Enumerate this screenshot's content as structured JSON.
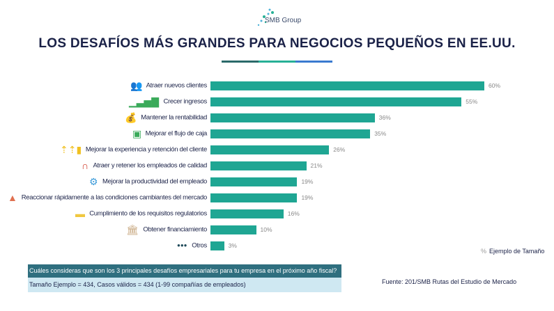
{
  "logo": {
    "text": "SMB Group"
  },
  "chart_data": {
    "type": "bar",
    "orientation": "horizontal",
    "title": "LOS DESAFÍOS MÁS GRANDES PARA NEGOCIOS PEQUEÑOS EN EE.UU.",
    "categories": [
      "Atraer nuevos clientes",
      "Crecer ingresos",
      "Mantener la rentabilidad",
      "Mejorar el flujo de caja",
      "Mejorar la experiencia y retención del cliente",
      "Atraer y retener los empleados de calidad",
      "Mejorar la productividad del empleado",
      "Reaccionar rápidamente a las condiciones cambiantes del mercado",
      "Cumplimiento de los requisitos regulatorios",
      "Obtener financiamiento",
      "Otros"
    ],
    "values": [
      60,
      55,
      36,
      35,
      26,
      21,
      19,
      19,
      16,
      10,
      3
    ],
    "value_labels": [
      "60%",
      "55%",
      "36%",
      "35%",
      "26%",
      "21%",
      "19%",
      "19%",
      "16%",
      "10%",
      "3%"
    ],
    "icons": [
      "people-icon",
      "growth-chart-icon",
      "money-bag-icon",
      "cash-icon",
      "customers-icon",
      "magnet-icon",
      "gears-icon",
      "chat-person-icon",
      "folder-icon",
      "bank-icon",
      "dots-icon"
    ],
    "xlim": [
      0,
      60
    ],
    "bar_color": "#1fa693",
    "legend": {
      "symbol": "%",
      "label": "Ejemplo de Tamaño",
      "position": "bottom-right"
    },
    "grid": false
  },
  "footer": {
    "question": "Cuáles consideras que son los 3 principales desafíos empresariales para tu empresa en el próximo año fiscal?",
    "sample": "Tamaño Ejemplo = 434, Casos válidos = 434 (1-99 compañías de empleados)",
    "source": "Fuente: 201/SMB Rutas del Estudio de Mercado"
  },
  "colors": {
    "title": "#1a2147",
    "rule": [
      "#2b6a6a",
      "#27b096",
      "#3a7ad0"
    ],
    "question_bg": "#2f6f7f",
    "sample_bg": "#cfe8f2"
  }
}
